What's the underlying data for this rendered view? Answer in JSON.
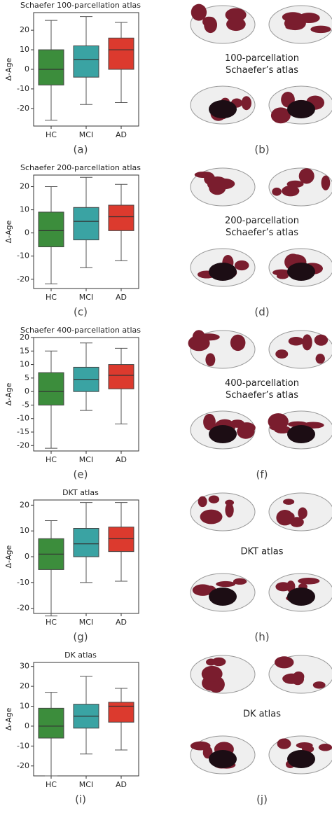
{
  "chart_data": [
    {
      "type": "box",
      "title": "Schaefer 100-parcellation atlas",
      "ylabel": "Δ-Age",
      "caption": "(a)",
      "categories": [
        "HC",
        "MCI",
        "AD"
      ],
      "colors": [
        "#3c8d3c",
        "#3aa3a3",
        "#dc3a2e"
      ],
      "ylim": [
        -29,
        29
      ],
      "yticks": [
        -20,
        -10,
        0,
        10,
        20
      ],
      "boxes": [
        {
          "low": -26,
          "q1": -8,
          "median": 0,
          "q3": 10,
          "high": 25
        },
        {
          "low": -18,
          "q1": -4,
          "median": 5,
          "q3": 12,
          "high": 27
        },
        {
          "low": -17,
          "q1": 0,
          "median": 10,
          "q3": 16,
          "high": 24
        }
      ]
    },
    {
      "type": "box",
      "title": "Schaefer 200-parcellation atlas",
      "ylabel": "Δ-Age",
      "caption": "(c)",
      "categories": [
        "HC",
        "MCI",
        "AD"
      ],
      "colors": [
        "#3c8d3c",
        "#3aa3a3",
        "#dc3a2e"
      ],
      "ylim": [
        -24,
        25
      ],
      "yticks": [
        -20,
        -10,
        0,
        10,
        20
      ],
      "boxes": [
        {
          "low": -22,
          "q1": -6,
          "median": 1,
          "q3": 9,
          "high": 20
        },
        {
          "low": -15,
          "q1": -3,
          "median": 5,
          "q3": 11,
          "high": 24
        },
        {
          "low": -12,
          "q1": 1,
          "median": 7,
          "q3": 12,
          "high": 21
        }
      ]
    },
    {
      "type": "box",
      "title": "Schaefer 400-parcellation atlas",
      "ylabel": "Δ-Age",
      "caption": "(e)",
      "categories": [
        "HC",
        "MCI",
        "AD"
      ],
      "colors": [
        "#3c8d3c",
        "#3aa3a3",
        "#dc3a2e"
      ],
      "ylim": [
        -22,
        20
      ],
      "yticks": [
        -20,
        -15,
        -10,
        -5,
        0,
        5,
        10,
        15,
        20
      ],
      "boxes": [
        {
          "low": -21,
          "q1": -5,
          "median": 0,
          "q3": 7,
          "high": 15
        },
        {
          "low": -7,
          "q1": 0,
          "median": 4.5,
          "q3": 9,
          "high": 18
        },
        {
          "low": -12,
          "q1": 1,
          "median": 6,
          "q3": 10,
          "high": 16
        }
      ]
    },
    {
      "type": "box",
      "title": "DKT atlas",
      "ylabel": "Δ-Age",
      "caption": "(g)",
      "categories": [
        "HC",
        "MCI",
        "AD"
      ],
      "colors": [
        "#3c8d3c",
        "#3aa3a3",
        "#dc3a2e"
      ],
      "ylim": [
        -22,
        22
      ],
      "yticks": [
        -20,
        -10,
        0,
        10,
        20
      ],
      "boxes": [
        {
          "low": -23,
          "q1": -5,
          "median": 1,
          "q3": 7,
          "high": 14
        },
        {
          "low": -10,
          "q1": 0,
          "median": 5,
          "q3": 11,
          "high": 21
        },
        {
          "low": -9.5,
          "q1": 2,
          "median": 7,
          "q3": 11.5,
          "high": 21
        }
      ]
    },
    {
      "type": "box",
      "title": "DK atlas",
      "ylabel": "Δ-Age",
      "caption": "(i)",
      "categories": [
        "HC",
        "MCI",
        "AD"
      ],
      "colors": [
        "#3c8d3c",
        "#3aa3a3",
        "#dc3a2e"
      ],
      "ylim": [
        -25,
        32
      ],
      "yticks": [
        -20,
        -10,
        0,
        10,
        20,
        30
      ],
      "boxes": [
        {
          "low": -25,
          "q1": -6,
          "median": 0,
          "q3": 9,
          "high": 17
        },
        {
          "low": -14,
          "q1": -1,
          "median": 5,
          "q3": 11,
          "high": 25
        },
        {
          "low": -12,
          "q1": 2,
          "median": 10,
          "q3": 12,
          "high": 19
        }
      ]
    }
  ],
  "brain_panels": [
    {
      "label": "(b)",
      "text_lines": [
        "100-parcellation",
        "Schaefer’s atlas"
      ]
    },
    {
      "label": "(d)",
      "text_lines": [
        "200-parcellation",
        "Schaefer’s atlas"
      ]
    },
    {
      "label": "(f)",
      "text_lines": [
        "400-parcellation",
        "Schaefer’s atlas"
      ]
    },
    {
      "label": "(h)",
      "text_lines": [
        "DKT atlas"
      ]
    },
    {
      "label": "(j)",
      "text_lines": [
        "DK atlas"
      ]
    }
  ]
}
